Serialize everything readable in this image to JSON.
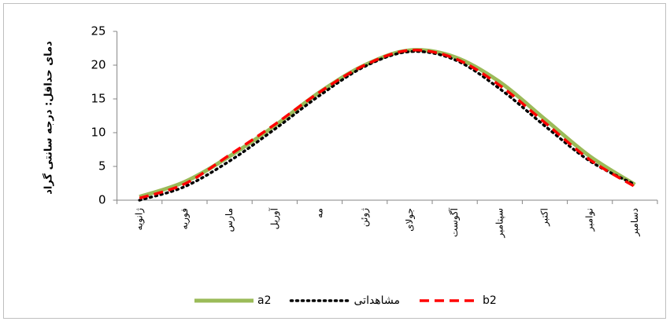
{
  "chart_data": {
    "type": "line",
    "y_label": "دمای حداقل: درجه سانتی گراد",
    "categories": [
      "ژانویه",
      "فوریه",
      "مارس",
      "آوریل",
      "مه",
      "ژوئن",
      "جولای",
      "آگوست",
      "سپتامبر",
      "اکتبر",
      "نوامبر",
      "دسامبر"
    ],
    "series": [
      {
        "name": "a2",
        "color": "#9bbb59",
        "style": "solid",
        "values": [
          0.5,
          2.7,
          6.5,
          11,
          16,
          20,
          22.2,
          21.2,
          17.5,
          12,
          6.5,
          2.3
        ]
      },
      {
        "name": "مشاهداتی",
        "color": "#000000",
        "style": "dotted",
        "values": [
          0,
          2,
          5.8,
          10.5,
          15.5,
          19.8,
          22,
          20.8,
          16.5,
          11,
          5.8,
          2.3
        ]
      },
      {
        "name": "b2",
        "color": "#ff0000",
        "style": "dashed",
        "values": [
          0.3,
          2.4,
          6.7,
          11.2,
          16,
          20,
          22.2,
          21,
          17,
          11.5,
          6,
          2
        ]
      }
    ],
    "ylim": [
      0,
      25
    ],
    "yticks": [
      0,
      5,
      10,
      15,
      20,
      25
    ],
    "grid": false,
    "legend": "bottom"
  }
}
